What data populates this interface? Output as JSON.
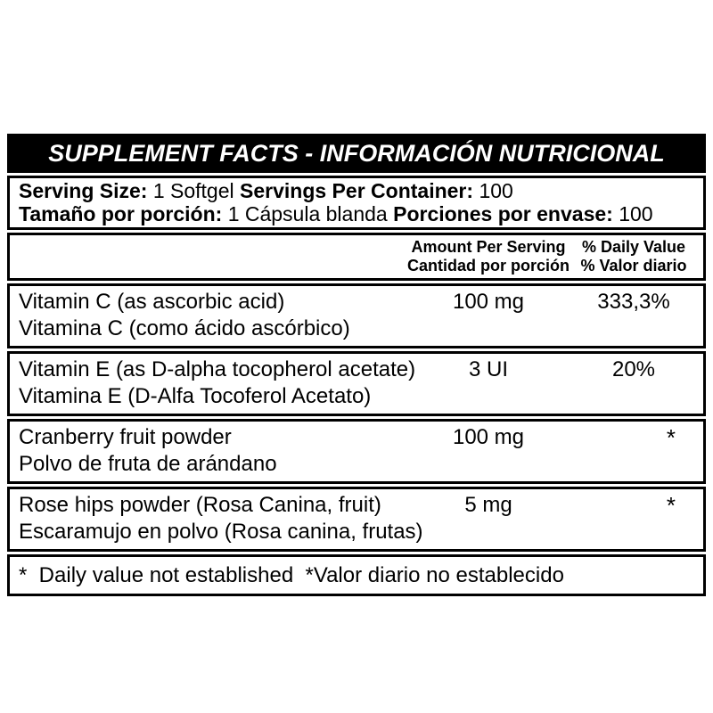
{
  "page": {
    "background": "#ffffff"
  },
  "label": {
    "border_color": "#000000",
    "title": {
      "text": "SUPPLEMENT FACTS - INFORMACIÓN NUTRICIONAL",
      "bg": "#000000",
      "color": "#ffffff"
    },
    "serving": {
      "en": {
        "size_label": "Serving Size:",
        "size_value": "1 Softgel",
        "container_label": "Servings Per Container:",
        "container_value": "100"
      },
      "es": {
        "size_label": "Tamaño por porción:",
        "size_value": "1 Cápsula blanda",
        "container_label": "Porciones por envase:",
        "container_value": "100"
      }
    },
    "columns": {
      "amount": {
        "line1": "Amount Per Serving",
        "line2": "Cantidad por porción"
      },
      "daily": {
        "line1": "% Daily Value",
        "line2": "% Valor diario"
      }
    },
    "rows": [
      {
        "name_en": "Vitamin C (as ascorbic acid)",
        "name_es": "Vitamina C (como ácido ascórbico)",
        "amount": "100 mg",
        "daily": "333,3%"
      },
      {
        "name_en": "Vitamin E (as D-alpha tocopherol acetate)",
        "name_es": "Vitamina E (D-Alfa Tocoferol Acetato)",
        "amount": "3 UI",
        "daily": "20%"
      },
      {
        "name_en": "Cranberry fruit powder",
        "name_es": "Polvo de fruta de arándano",
        "amount": "100 mg",
        "daily": "*"
      },
      {
        "name_en": "Rose hips powder (Rosa Canina, fruit)",
        "name_es": "Escaramujo en polvo (Rosa canina, frutas)",
        "amount": "5 mg",
        "daily": "*"
      }
    ],
    "footnote": "*  Daily value not established  *Valor diario no establecido"
  }
}
